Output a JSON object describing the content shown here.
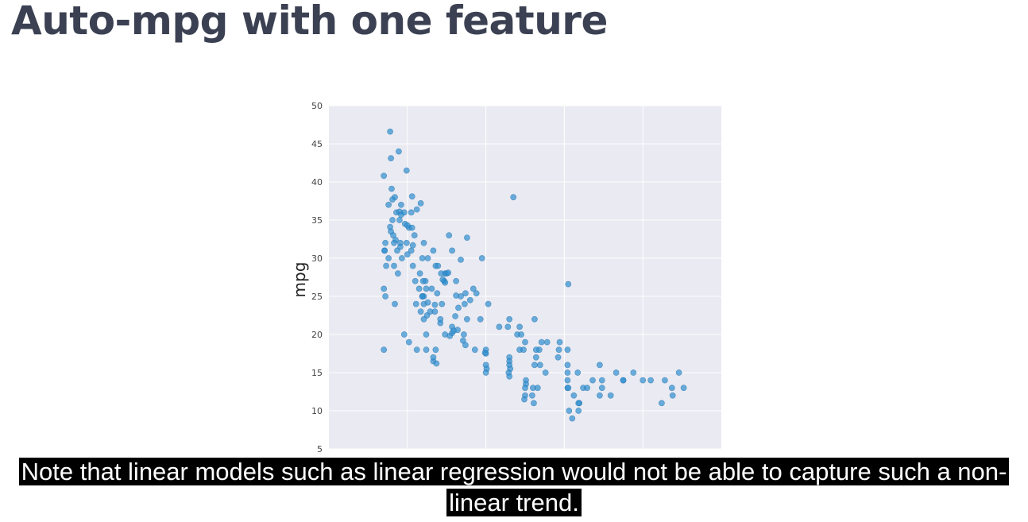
{
  "slide": {
    "title": "Auto-mpg with one feature",
    "caption": "Note that linear models such as linear regression would not be able to capture such a non-linear trend."
  },
  "colors": {
    "plot_background": "#eaeaf2",
    "grid": "#ffffff",
    "point": "#2f8fd0",
    "point_edge": "#1f6fa8",
    "title": "#3b4152",
    "caption_background": "#000000",
    "caption_text": "#ffffff"
  },
  "chart_data": {
    "type": "scatter",
    "title": "",
    "xlabel": "",
    "ylabel": "mpg",
    "xlim": [
      1,
      6
    ],
    "ylim": [
      5,
      50
    ],
    "yticks": [
      "5",
      "10",
      "15",
      "20",
      "25",
      "30",
      "35",
      "40",
      "45",
      "50"
    ],
    "xgrid": [
      2,
      3,
      4,
      5
    ],
    "grid": true,
    "x_tick_labels_visible": false,
    "x": [
      2.62,
      2.84,
      2.68,
      2.73,
      2.95,
      2.57,
      2.48,
      2.76,
      3.5,
      3.4,
      3.78,
      3.68,
      3.92,
      4.04,
      4.45,
      4.66,
      5.0,
      5.1,
      5.28,
      4.17,
      4.04,
      4.04,
      4.04,
      4.04,
      4.75,
      4.88,
      4.75,
      4.36,
      4.45,
      4.48,
      4.48,
      4.24,
      4.05,
      4.59,
      4.29,
      4.19,
      4.06,
      4.12,
      5.37,
      5.52,
      5.46,
      5.38,
      5.24,
      3.43,
      3.03,
      3.17,
      2.93,
      2.36,
      2.72,
      2.86,
      3.45,
      3.28,
      3.71,
      3.69,
      3.64,
      3.76,
      3.62,
      3.93,
      3.64,
      3.94,
      3.48,
      3.43,
      3.3,
      2.33,
      2.33,
      2.37,
      1.96,
      2.12,
      1.87,
      1.91,
      1.93,
      1.88,
      2.05,
      1.83,
      1.82,
      1.99,
      1.71,
      1.76,
      1.86,
      1.92,
      1.9,
      1.96,
      1.8,
      1.7,
      1.79,
      1.89,
      1.99,
      1.84,
      1.9,
      1.76,
      1.81,
      1.78,
      2.09,
      2.16,
      2.07,
      2.1,
      2.15,
      2.19,
      2.23,
      2.24,
      2.21,
      2.11,
      2.17,
      2.21,
      2.33,
      2.36,
      2.47,
      2.48,
      2.5,
      2.43,
      2.26,
      2.21,
      2.39,
      2.31,
      1.81,
      1.72,
      1.79,
      1.92,
      2.02,
      1.97,
      1.91,
      1.85,
      1.83,
      2.05,
      2.06,
      2.19,
      2.2,
      2.19,
      2.38,
      2.44,
      2.48,
      2.35,
      2.52,
      2.45,
      2.29,
      2.24,
      2.21,
      2.35,
      2.57,
      2.62,
      2.74,
      2.8,
      2.88,
      2.59,
      2.65,
      2.42,
      2.54,
      2.61,
      2.71,
      2.74,
      2.64,
      3.0,
      3.0,
      2.99,
      3.0,
      3.01,
      3.0,
      3.3,
      3.3,
      3.3,
      3.31,
      3.29,
      3.3,
      3.51,
      3.51,
      3.5,
      3.5,
      3.49,
      3.6,
      3.66,
      3.59,
      3.61,
      1.71,
      1.73,
      2.68,
      2.76,
      2.57,
      1.84,
      2.24,
      2.02,
      2.42,
      2.25,
      1.7,
      2.26,
      2.53,
      2.07,
      1.7,
      1.72,
      1.78,
      2.17,
      2.12,
      2.06,
      2.0,
      2.0,
      3.35,
      3.62,
      4.05,
      4.1,
      4.18,
      4.18
    ],
    "y": [
      27.0,
      26.0,
      25.0,
      24.0,
      30.0,
      21.0,
      20.0,
      22.0,
      19.0,
      20.0,
      19.0,
      18.0,
      17.0,
      18.0,
      16.0,
      15.0,
      14.0,
      14.0,
      14.0,
      15.0,
      13.0,
      14.0,
      15.0,
      16.0,
      14.0,
      15.0,
      14.0,
      14.0,
      12.0,
      13.0,
      14.0,
      13.0,
      13.0,
      12.0,
      13.0,
      11.0,
      10.0,
      12.0,
      13.0,
      13.0,
      15.0,
      12.0,
      11.0,
      18.0,
      24.0,
      21.0,
      22.0,
      18.0,
      20.0,
      18.0,
      20.0,
      21.0,
      19.0,
      16.0,
      17.0,
      15.0,
      16.0,
      18.0,
      18.0,
      19.0,
      18.0,
      21.0,
      22.0,
      16.5,
      17.0,
      16.2,
      20.0,
      18.0,
      31.0,
      32.0,
      30.0,
      28.0,
      31.0,
      29.0,
      33.0,
      32.0,
      31.0,
      30.0,
      36.0,
      37.0,
      35.0,
      36.0,
      39.1,
      40.8,
      43.1,
      44.0,
      41.5,
      38.0,
      36.1,
      37.0,
      37.7,
      34.1,
      33.0,
      28.0,
      29.0,
      27.0,
      26.0,
      25.0,
      27.0,
      26.0,
      25.0,
      24.0,
      23.0,
      22.0,
      31.0,
      29.0,
      27.0,
      28.0,
      28.0,
      28.0,
      30.0,
      32.0,
      29.0,
      26.0,
      35.0,
      32.0,
      33.5,
      35.7,
      34.0,
      34.5,
      31.5,
      32.4,
      32.0,
      36.0,
      34.0,
      30.0,
      27.0,
      25.0,
      25.4,
      24.0,
      26.8,
      23.9,
      28.1,
      27.2,
      23.0,
      20.0,
      24.0,
      23.0,
      20.2,
      25.1,
      25.4,
      24.5,
      25.4,
      20.5,
      23.5,
      21.5,
      19.8,
      22.4,
      19.2,
      18.6,
      20.6,
      18.0,
      17.5,
      17.6,
      16.0,
      15.5,
      15.0,
      17.0,
      16.5,
      16.0,
      15.5,
      15.0,
      14.5,
      14.0,
      13.5,
      13.0,
      12.0,
      11.5,
      13.0,
      13.0,
      12.0,
      11.0,
      31.0,
      29.0,
      29.8,
      32.7,
      31.0,
      24.0,
      18.0,
      19.0,
      22.0,
      22.5,
      18.0,
      24.2,
      33.0,
      31.7,
      26.0,
      25.0,
      46.6,
      37.2,
      36.4,
      38.1,
      30.5,
      34.3,
      38.0,
      22.0,
      26.6,
      9.0,
      10.0,
      11.0
    ]
  }
}
